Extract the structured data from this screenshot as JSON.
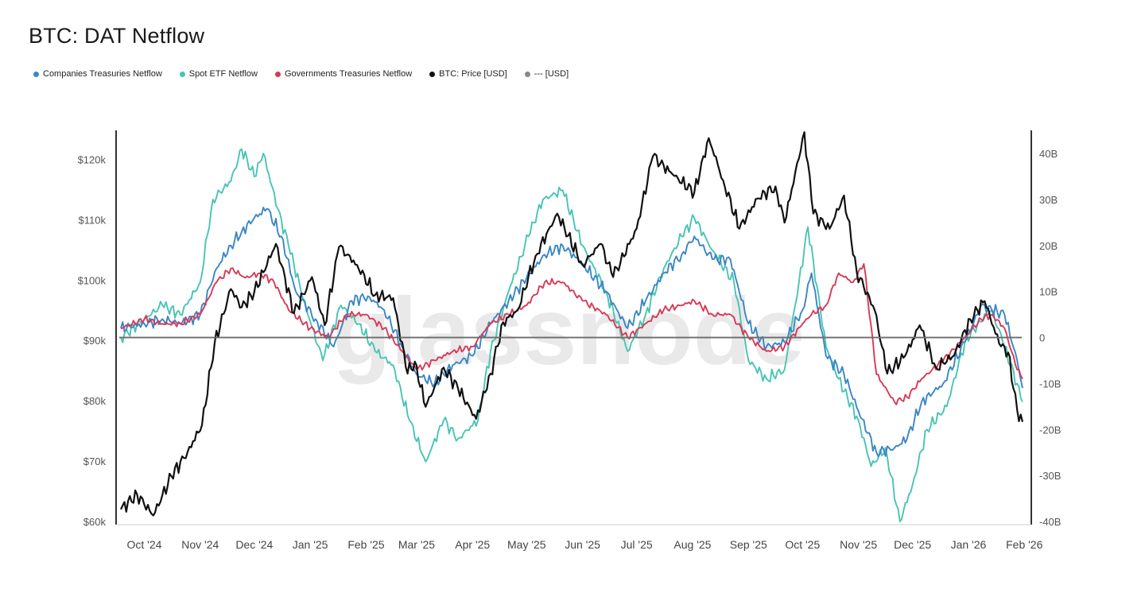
{
  "title": "BTC: DAT Netflow",
  "watermark": "glassnode",
  "legend": [
    {
      "label": "Companies Treasuries Netflow",
      "color": "#3b86c4"
    },
    {
      "label": "Spot ETF Netflow",
      "color": "#49c4b2"
    },
    {
      "label": "Governments Treasuries Netflow",
      "color": "#d63a58"
    },
    {
      "label": "BTC: Price [USD]",
      "color": "#111111"
    },
    {
      "label": "--- [USD]",
      "color": "#888888"
    }
  ],
  "chart_data": {
    "type": "line",
    "title": "BTC: DAT Netflow",
    "x_ticks": [
      "Oct '24",
      "Nov '24",
      "Dec '24",
      "Jan '25",
      "Feb '25",
      "Mar '25",
      "Apr '25",
      "May '25",
      "Jun '25",
      "Jul '25",
      "Aug '25",
      "Sep '25",
      "Oct '25",
      "Nov '25",
      "Dec '25",
      "Jan '26",
      "Feb '26"
    ],
    "x_range": [
      "2024-09-22",
      "2026-02-04"
    ],
    "y_left": {
      "label": "",
      "ticks": [
        "$60k",
        "$70k",
        "$80k",
        "$90k",
        "$100k",
        "$110k",
        "$120k"
      ],
      "range": [
        60000,
        124000
      ]
    },
    "y_right": {
      "label": "",
      "ticks": [
        "-40B",
        "-30B",
        "-20B",
        "-10B",
        "0",
        "10B",
        "20B",
        "30B",
        "40B"
      ],
      "range": [
        -40,
        44
      ]
    },
    "zero_line": {
      "axis": "right",
      "value": 0
    },
    "series": [
      {
        "name": "BTC: Price [USD]",
        "axis": "left",
        "color": "#111111",
        "points": [
          [
            "2024-09-22",
            62000
          ],
          [
            "2024-10-01",
            64500
          ],
          [
            "2024-10-10",
            61000
          ],
          [
            "2024-10-20",
            67500
          ],
          [
            "2024-10-29",
            71500
          ],
          [
            "2024-11-06",
            76000
          ],
          [
            "2024-11-13",
            89500
          ],
          [
            "2024-11-22",
            98500
          ],
          [
            "2024-11-28",
            95500
          ],
          [
            "2024-12-05",
            98000
          ],
          [
            "2024-12-17",
            106000
          ],
          [
            "2024-12-27",
            94500
          ],
          [
            "2025-01-06",
            100500
          ],
          [
            "2025-01-13",
            92500
          ],
          [
            "2025-01-21",
            105500
          ],
          [
            "2025-01-31",
            102500
          ],
          [
            "2025-02-10",
            97500
          ],
          [
            "2025-02-20",
            97000
          ],
          [
            "2025-02-28",
            84500
          ],
          [
            "2025-03-04",
            86500
          ],
          [
            "2025-03-10",
            79000
          ],
          [
            "2025-03-20",
            85500
          ],
          [
            "2025-03-28",
            82000
          ],
          [
            "2025-04-07",
            77000
          ],
          [
            "2025-04-15",
            84500
          ],
          [
            "2025-04-22",
            93000
          ],
          [
            "2025-04-30",
            95000
          ],
          [
            "2025-05-10",
            104000
          ],
          [
            "2025-05-22",
            111000
          ],
          [
            "2025-06-05",
            102500
          ],
          [
            "2025-06-15",
            106000
          ],
          [
            "2025-06-22",
            100500
          ],
          [
            "2025-07-05",
            108500
          ],
          [
            "2025-07-14",
            120500
          ],
          [
            "2025-07-25",
            117500
          ],
          [
            "2025-08-06",
            114500
          ],
          [
            "2025-08-14",
            123500
          ],
          [
            "2025-08-22",
            116500
          ],
          [
            "2025-08-31",
            108500
          ],
          [
            "2025-09-10",
            113500
          ],
          [
            "2025-09-20",
            115500
          ],
          [
            "2025-09-25",
            109500
          ],
          [
            "2025-10-06",
            124500
          ],
          [
            "2025-10-11",
            111000
          ],
          [
            "2025-10-20",
            108500
          ],
          [
            "2025-10-28",
            114000
          ],
          [
            "2025-11-04",
            101500
          ],
          [
            "2025-11-14",
            95000
          ],
          [
            "2025-11-21",
            84500
          ],
          [
            "2025-12-01",
            87500
          ],
          [
            "2025-12-09",
            92500
          ],
          [
            "2025-12-18",
            85500
          ],
          [
            "2025-12-28",
            87500
          ],
          [
            "2026-01-06",
            93500
          ],
          [
            "2026-01-14",
            96500
          ],
          [
            "2026-01-22",
            89500
          ],
          [
            "2026-01-27",
            88000
          ],
          [
            "2026-02-01",
            78500
          ],
          [
            "2026-02-04",
            76500
          ]
        ]
      },
      {
        "name": "Spot ETF Netflow",
        "axis": "right",
        "color": "#49c4b2",
        "points": [
          [
            "2024-09-22",
            0
          ],
          [
            "2024-10-05",
            4
          ],
          [
            "2024-10-15",
            7
          ],
          [
            "2024-10-25",
            5
          ],
          [
            "2024-11-05",
            12
          ],
          [
            "2024-11-12",
            30
          ],
          [
            "2024-11-22",
            34
          ],
          [
            "2024-11-28",
            41
          ],
          [
            "2024-12-05",
            35
          ],
          [
            "2024-12-10",
            40
          ],
          [
            "2024-12-18",
            28
          ],
          [
            "2024-12-24",
            20
          ],
          [
            "2025-01-03",
            6
          ],
          [
            "2025-01-12",
            -5
          ],
          [
            "2025-01-22",
            7
          ],
          [
            "2025-02-01",
            3
          ],
          [
            "2025-02-10",
            -3
          ],
          [
            "2025-02-20",
            -6
          ],
          [
            "2025-03-01",
            -18
          ],
          [
            "2025-03-10",
            -27
          ],
          [
            "2025-03-20",
            -18
          ],
          [
            "2025-03-28",
            -22
          ],
          [
            "2025-04-08",
            -18
          ],
          [
            "2025-04-15",
            -3
          ],
          [
            "2025-04-25",
            10
          ],
          [
            "2025-05-06",
            22
          ],
          [
            "2025-05-14",
            30
          ],
          [
            "2025-05-25",
            32
          ],
          [
            "2025-06-05",
            20
          ],
          [
            "2025-06-18",
            10
          ],
          [
            "2025-06-30",
            -3
          ],
          [
            "2025-07-10",
            5
          ],
          [
            "2025-07-20",
            15
          ],
          [
            "2025-07-30",
            22
          ],
          [
            "2025-08-06",
            26
          ],
          [
            "2025-08-16",
            19
          ],
          [
            "2025-08-28",
            12
          ],
          [
            "2025-09-05",
            -5
          ],
          [
            "2025-09-15",
            -9
          ],
          [
            "2025-09-25",
            -7
          ],
          [
            "2025-10-03",
            12
          ],
          [
            "2025-10-08",
            24
          ],
          [
            "2025-10-18",
            -2
          ],
          [
            "2025-10-25",
            -9
          ],
          [
            "2025-11-05",
            -18
          ],
          [
            "2025-11-12",
            -28
          ],
          [
            "2025-11-20",
            -24
          ],
          [
            "2025-11-28",
            -40
          ],
          [
            "2025-12-05",
            -32
          ],
          [
            "2025-12-13",
            -20
          ],
          [
            "2025-12-24",
            -15
          ],
          [
            "2026-01-03",
            -1
          ],
          [
            "2026-01-10",
            3
          ],
          [
            "2026-01-18",
            6
          ],
          [
            "2026-01-24",
            -1
          ],
          [
            "2026-02-01",
            -10
          ],
          [
            "2026-02-04",
            -14
          ]
        ]
      },
      {
        "name": "Companies Treasuries Netflow",
        "axis": "right",
        "color": "#3b86c4",
        "points": [
          [
            "2024-09-22",
            2
          ],
          [
            "2024-10-05",
            3
          ],
          [
            "2024-10-15",
            4
          ],
          [
            "2024-10-25",
            3
          ],
          [
            "2024-11-05",
            5
          ],
          [
            "2024-11-14",
            15
          ],
          [
            "2024-11-22",
            20
          ],
          [
            "2024-11-28",
            23
          ],
          [
            "2024-12-05",
            26
          ],
          [
            "2024-12-12",
            28
          ],
          [
            "2024-12-20",
            22
          ],
          [
            "2024-12-28",
            10
          ],
          [
            "2025-01-08",
            4
          ],
          [
            "2025-01-18",
            -2
          ],
          [
            "2025-01-28",
            8
          ],
          [
            "2025-02-06",
            9
          ],
          [
            "2025-02-15",
            6
          ],
          [
            "2025-02-25",
            -2
          ],
          [
            "2025-03-05",
            -8
          ],
          [
            "2025-03-15",
            -10
          ],
          [
            "2025-03-25",
            -6
          ],
          [
            "2025-04-05",
            -4
          ],
          [
            "2025-04-15",
            3
          ],
          [
            "2025-04-25",
            8
          ],
          [
            "2025-05-05",
            13
          ],
          [
            "2025-05-15",
            18
          ],
          [
            "2025-05-25",
            20
          ],
          [
            "2025-06-05",
            16
          ],
          [
            "2025-06-18",
            10
          ],
          [
            "2025-06-30",
            2
          ],
          [
            "2025-07-10",
            8
          ],
          [
            "2025-07-20",
            14
          ],
          [
            "2025-07-30",
            18
          ],
          [
            "2025-08-06",
            22
          ],
          [
            "2025-08-16",
            17
          ],
          [
            "2025-08-26",
            17
          ],
          [
            "2025-09-05",
            3
          ],
          [
            "2025-09-15",
            -2
          ],
          [
            "2025-09-25",
            -1
          ],
          [
            "2025-10-05",
            6
          ],
          [
            "2025-10-10",
            14
          ],
          [
            "2025-10-18",
            -4
          ],
          [
            "2025-10-28",
            -8
          ],
          [
            "2025-11-05",
            -16
          ],
          [
            "2025-11-15",
            -25
          ],
          [
            "2025-11-25",
            -24
          ],
          [
            "2025-12-02",
            -22
          ],
          [
            "2025-12-10",
            -14
          ],
          [
            "2025-12-22",
            -10
          ],
          [
            "2026-01-03",
            -1
          ],
          [
            "2026-01-12",
            7
          ],
          [
            "2026-01-18",
            6
          ],
          [
            "2026-01-25",
            5
          ],
          [
            "2026-02-01",
            -5
          ],
          [
            "2026-02-04",
            -11
          ]
        ]
      },
      {
        "name": "Governments Treasuries Netflow",
        "axis": "right",
        "color": "#d63a58",
        "points": [
          [
            "2024-09-22",
            2
          ],
          [
            "2024-10-05",
            4
          ],
          [
            "2024-10-15",
            3
          ],
          [
            "2024-10-25",
            3
          ],
          [
            "2024-11-05",
            5
          ],
          [
            "2024-11-14",
            12
          ],
          [
            "2024-11-22",
            15
          ],
          [
            "2024-11-30",
            13
          ],
          [
            "2024-12-08",
            14
          ],
          [
            "2024-12-16",
            12
          ],
          [
            "2024-12-24",
            6
          ],
          [
            "2025-01-05",
            2
          ],
          [
            "2025-01-15",
            0
          ],
          [
            "2025-01-25",
            5
          ],
          [
            "2025-02-05",
            5
          ],
          [
            "2025-02-15",
            2
          ],
          [
            "2025-02-25",
            -3
          ],
          [
            "2025-03-05",
            -7
          ],
          [
            "2025-03-15",
            -5
          ],
          [
            "2025-03-25",
            -3
          ],
          [
            "2025-04-05",
            -2
          ],
          [
            "2025-04-15",
            3
          ],
          [
            "2025-04-25",
            5
          ],
          [
            "2025-05-05",
            7
          ],
          [
            "2025-05-15",
            12
          ],
          [
            "2025-05-25",
            12
          ],
          [
            "2025-06-05",
            8
          ],
          [
            "2025-06-18",
            5
          ],
          [
            "2025-06-30",
            0
          ],
          [
            "2025-07-10",
            3
          ],
          [
            "2025-07-20",
            6
          ],
          [
            "2025-07-30",
            7
          ],
          [
            "2025-08-06",
            8
          ],
          [
            "2025-08-16",
            5
          ],
          [
            "2025-08-26",
            5
          ],
          [
            "2025-09-05",
            0
          ],
          [
            "2025-09-15",
            -3
          ],
          [
            "2025-09-25",
            -2
          ],
          [
            "2025-10-05",
            3
          ],
          [
            "2025-10-10",
            5
          ],
          [
            "2025-10-18",
            7
          ],
          [
            "2025-10-25",
            14
          ],
          [
            "2025-11-02",
            12
          ],
          [
            "2025-11-08",
            16
          ],
          [
            "2025-11-15",
            -8
          ],
          [
            "2025-11-25",
            -14
          ],
          [
            "2025-12-02",
            -13
          ],
          [
            "2025-12-10",
            -9
          ],
          [
            "2025-12-22",
            -5
          ],
          [
            "2026-01-03",
            0
          ],
          [
            "2026-01-12",
            4
          ],
          [
            "2026-01-18",
            5
          ],
          [
            "2026-01-25",
            2
          ],
          [
            "2026-02-01",
            -7
          ],
          [
            "2026-02-04",
            -9
          ]
        ]
      }
    ]
  }
}
